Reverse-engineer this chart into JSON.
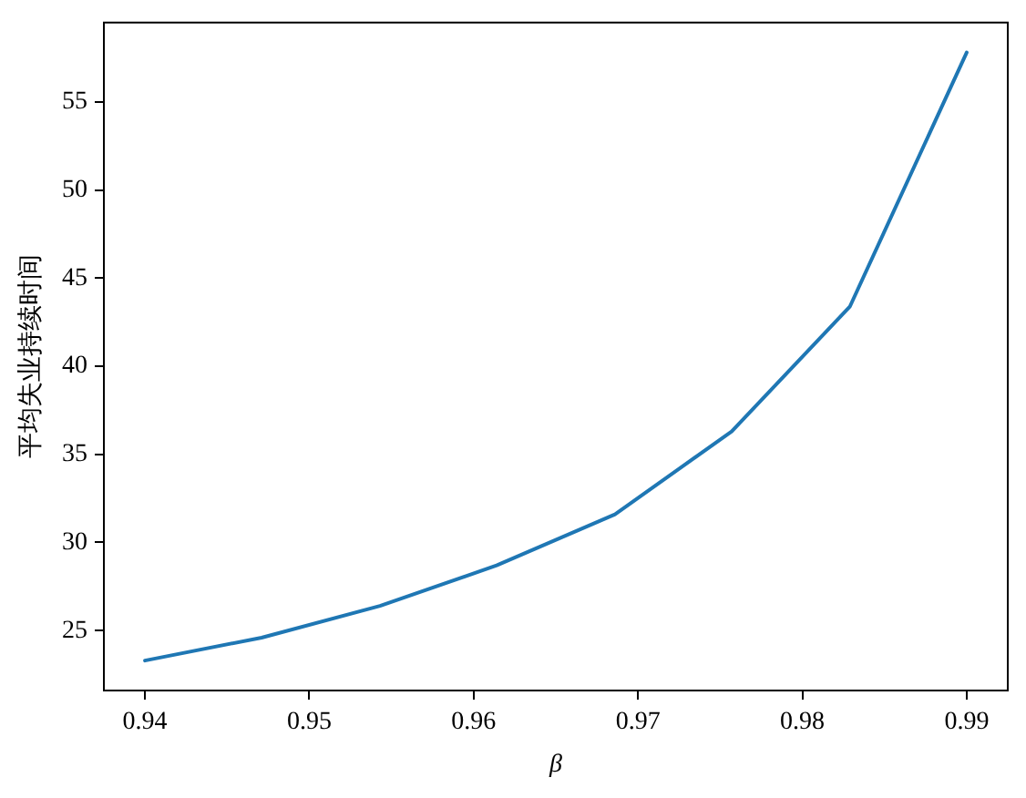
{
  "chart_data": {
    "type": "line",
    "xlabel": "β",
    "ylabel": "平均失业持续时间",
    "x": [
      0.94,
      0.9471,
      0.9543,
      0.9614,
      0.9686,
      0.9757,
      0.9829,
      0.99
    ],
    "values": [
      23.3,
      24.6,
      26.4,
      28.7,
      31.6,
      36.3,
      43.4,
      57.8
    ],
    "color": "#1f77b4",
    "xlim": [
      0.9375,
      0.9925
    ],
    "xticks": [
      0.94,
      0.95,
      0.96,
      0.97,
      0.98,
      0.99
    ],
    "ylim": [
      21.6,
      59.5
    ],
    "yticks": [
      25,
      30,
      35,
      40,
      45,
      50,
      55
    ],
    "grid": false,
    "marker": "none",
    "line_style": "solid"
  }
}
